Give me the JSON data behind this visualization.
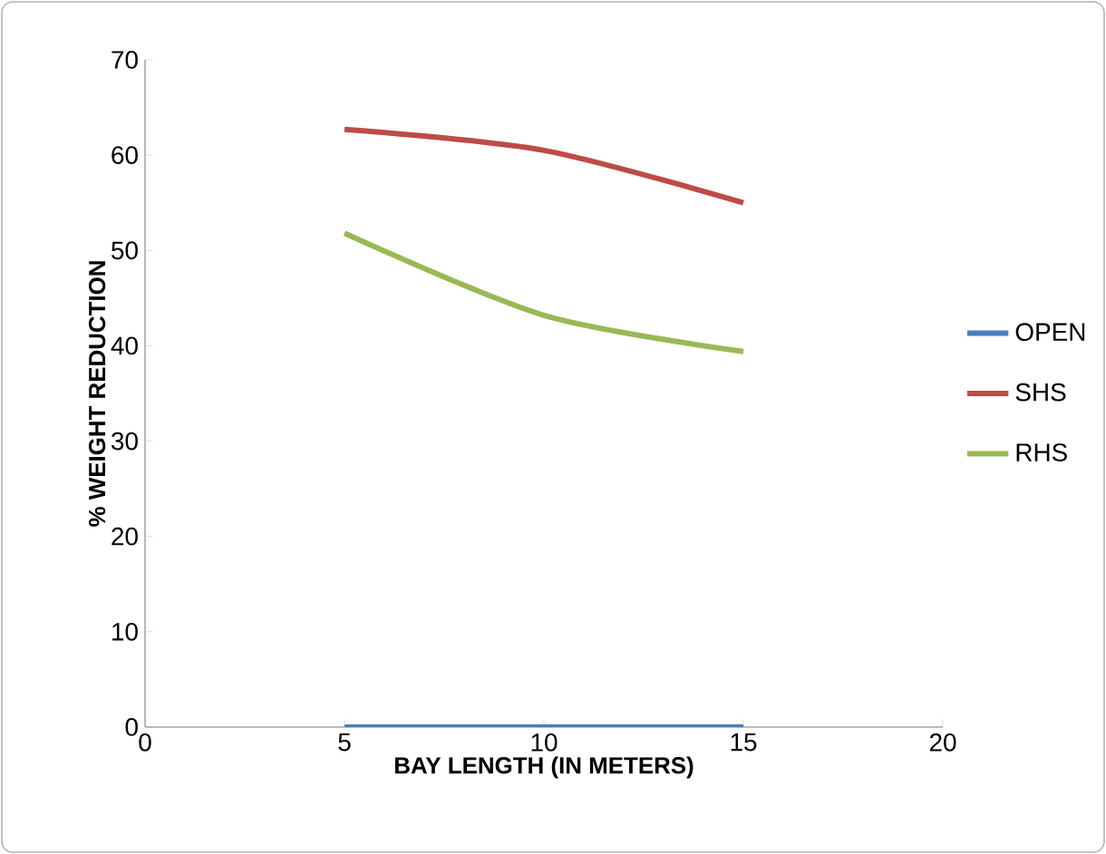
{
  "chart_data": {
    "type": "line",
    "xlabel": "BAY LENGTH (IN METERS)",
    "ylabel": "% WEIGHT REDUCTION",
    "x": [
      5,
      10,
      15
    ],
    "series": [
      {
        "name": "OPEN",
        "color": "#4a7ebb",
        "values": [
          0,
          0,
          0
        ]
      },
      {
        "name": "SHS",
        "color": "#be4b48",
        "values": [
          62.7,
          60.5,
          55
        ]
      },
      {
        "name": "RHS",
        "color": "#98b954",
        "values": [
          51.8,
          43.2,
          39.4
        ]
      }
    ],
    "xlim": [
      0,
      20
    ],
    "xticks": [
      0,
      5,
      10,
      15,
      20
    ],
    "ylim": [
      0,
      70
    ],
    "yticks": [
      0,
      10,
      20,
      30,
      40,
      50,
      60,
      70
    ],
    "grid": false,
    "legend": "right",
    "marker": "none",
    "line_style": "solid"
  }
}
